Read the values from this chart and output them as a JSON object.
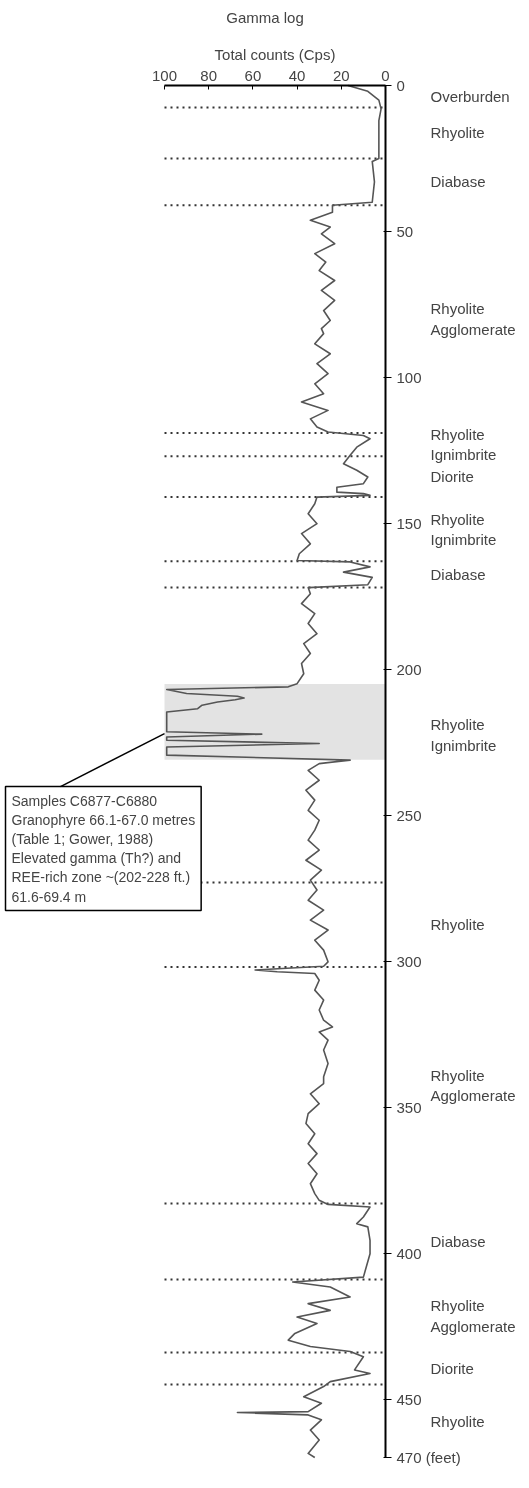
{
  "chart_data": {
    "type": "line",
    "title": "Gamma log",
    "xlabel": "Total counts (Cps)",
    "xlim": [
      100,
      0
    ],
    "xticks": [
      100,
      80,
      60,
      40,
      20,
      0
    ],
    "ylim": [
      470,
      0
    ],
    "yticks": [
      0,
      50,
      100,
      150,
      200,
      250,
      300,
      350,
      400,
      450,
      {
        "value": 470,
        "label": "470 (feet)"
      }
    ],
    "grid": false,
    "line_style": "solid",
    "series": [
      {
        "color": "#555555",
        "x": [
          17,
          8,
          3,
          2,
          3,
          3,
          3,
          6,
          5,
          6,
          24,
          24,
          34,
          25,
          29,
          23,
          32,
          27,
          30,
          23,
          29,
          23,
          28,
          25,
          29,
          28,
          32,
          25,
          31,
          26,
          32,
          28,
          38,
          26,
          34,
          31,
          26,
          10,
          7,
          13,
          16,
          19,
          13,
          8,
          10,
          22,
          22,
          10,
          7,
          31,
          32,
          35,
          31,
          38,
          34,
          39,
          40,
          16,
          7,
          19,
          6,
          8,
          35,
          34,
          38,
          32,
          35,
          31,
          37,
          34,
          38,
          37,
          40,
          44,
          99,
          90,
          67,
          64,
          68,
          76,
          83,
          85,
          99,
          99,
          56,
          99,
          99,
          30,
          99,
          99,
          16,
          30,
          35,
          30,
          36,
          32,
          35,
          30,
          32,
          35,
          30,
          36,
          29,
          34,
          31,
          35,
          28,
          34,
          26,
          32,
          28,
          26,
          28,
          59,
          49,
          32,
          30,
          32,
          28,
          30,
          28,
          24,
          30,
          26,
          28,
          26,
          28,
          28,
          34,
          30,
          35,
          36,
          32,
          35,
          31,
          35,
          31,
          34,
          32,
          30,
          26,
          7,
          10,
          13,
          8,
          7,
          7,
          10,
          42,
          25,
          16,
          35,
          25,
          40,
          31,
          41,
          44,
          34,
          16,
          10,
          14,
          7,
          25,
          28,
          37,
          29,
          35,
          67,
          35,
          29,
          34,
          30,
          35,
          32
        ],
        "values": [
          0,
          2,
          5,
          8,
          12,
          20,
          25,
          26,
          33,
          40,
          41,
          43.4,
          46.2,
          48.5,
          50.8,
          54.2,
          57.6,
          60.5,
          63.4,
          66.8,
          70.2,
          73.6,
          77.1,
          80.5,
          83.3,
          85,
          88.5,
          91.9,
          95.3,
          98.7,
          102.2,
          105.6,
          108.4,
          111.3,
          114.2,
          117,
          118.7,
          119.9,
          121,
          123.9,
          126.7,
          129.6,
          131.8,
          134.1,
          136.4,
          137.6,
          139.3,
          139.8,
          140.4,
          141,
          143.3,
          146.7,
          150.1,
          153.5,
          157,
          160.4,
          162.7,
          163.2,
          164.9,
          166.7,
          168.5,
          171,
          172,
          174.1,
          177.5,
          180.9,
          184.3,
          187.8,
          191.2,
          194.6,
          198,
          201.5,
          204.9,
          206,
          206.9,
          208.3,
          209.2,
          209.8,
          210.4,
          211.2,
          212.3,
          213.5,
          214.6,
          221.4,
          222.2,
          223.2,
          224.3,
          225.4,
          226.6,
          229.4,
          231.1,
          232.3,
          234.6,
          238,
          241.4,
          244.8,
          248.3,
          251.7,
          255.1,
          258.5,
          261.9,
          265.4,
          268.8,
          272.2,
          275.6,
          279.1,
          282.5,
          285.9,
          289.3,
          292.8,
          296.2,
          300.2,
          301.7,
          303,
          303.6,
          304.2,
          306.5,
          309.9,
          313.3,
          316.7,
          320.2,
          322.5,
          324.2,
          327,
          330.4,
          335,
          339.6,
          341.9,
          345.4,
          348.8,
          352.2,
          355.6,
          359.1,
          362.5,
          365.9,
          369.3,
          372.8,
          376.2,
          379.6,
          381.9,
          383.3,
          384.2,
          387.6,
          389.9,
          391,
          395.6,
          400.2,
          408.2,
          409.9,
          411.6,
          415,
          417.3,
          419.6,
          421.9,
          424.1,
          427.5,
          429.8,
          432,
          433.7,
          435.5,
          440,
          441.2,
          444,
          445.7,
          449.2,
          451.4,
          454.3,
          454.6,
          455.4,
          457.1,
          460.6,
          464,
          468.6,
          470
        ]
      }
    ],
    "ref_lines": [
      {
        "axis": "y",
        "value": 7.5,
        "line_style": "dotted",
        "color": "#333333"
      },
      {
        "axis": "y",
        "value": 25,
        "line_style": "dotted",
        "color": "#333333"
      },
      {
        "axis": "y",
        "value": 41,
        "line_style": "dotted",
        "color": "#333333"
      },
      {
        "axis": "y",
        "value": 119,
        "line_style": "dotted",
        "color": "#333333"
      },
      {
        "axis": "y",
        "value": 127,
        "line_style": "dotted",
        "color": "#333333"
      },
      {
        "axis": "y",
        "value": 141,
        "line_style": "dotted",
        "color": "#333333"
      },
      {
        "axis": "y",
        "value": 163,
        "line_style": "dotted",
        "color": "#333333"
      },
      {
        "axis": "y",
        "value": 172,
        "line_style": "dotted",
        "color": "#333333"
      },
      {
        "axis": "y",
        "value": 273,
        "line_style": "dotted",
        "color": "#333333"
      },
      {
        "axis": "y",
        "value": 302,
        "line_style": "dotted",
        "color": "#333333"
      },
      {
        "axis": "y",
        "value": 383,
        "line_style": "dotted",
        "color": "#333333"
      },
      {
        "axis": "y",
        "value": 409,
        "line_style": "dotted",
        "color": "#333333"
      },
      {
        "axis": "y",
        "value": 434,
        "line_style": "dotted",
        "color": "#333333"
      },
      {
        "axis": "y",
        "value": 445,
        "line_style": "dotted",
        "color": "#333333"
      }
    ],
    "bands": [
      {
        "axis": "y",
        "from": 205,
        "to": 231,
        "color": "#e3e3e3"
      }
    ],
    "annotations": [
      "Overburden",
      "Rhyolite",
      "Diabase",
      "Rhyolite\nAgglomerate",
      "Rhyolite\nIgnimbrite",
      "Diorite",
      "Rhyolite\nIgnimbrite",
      "Diabase",
      "Rhyolite\nIgnimbrite",
      "Rhyolite",
      "Rhyolite\nAgglomerate",
      "Diabase",
      "Rhyolite\nAgglomerate",
      "Diorite",
      "Rhyolite",
      {
        "text": "Samples C6877-C6880\nGranophyre 66.1-67.0 metres\n(Table 1; Gower, 1988)\nElevated gamma (Th?) and\nREE-rich zone ~(202-228 ft.)\n61.6-69.4 m",
        "x": 100,
        "y": 222
      }
    ]
  }
}
